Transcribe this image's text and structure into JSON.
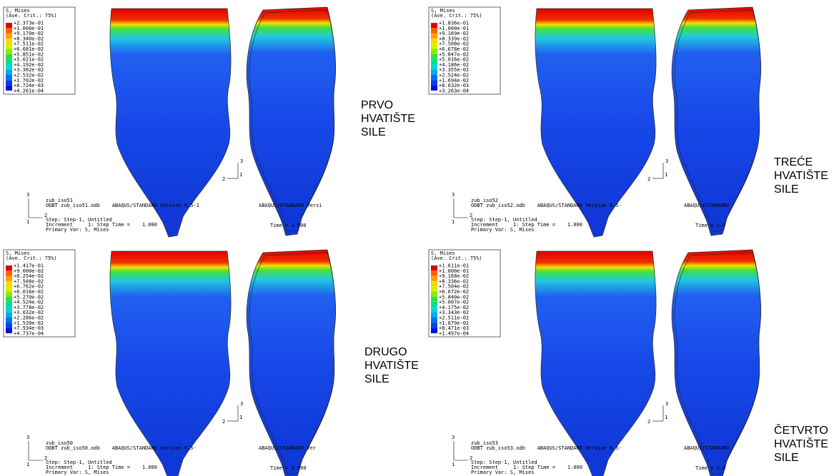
{
  "panels": [
    {
      "legend": {
        "title": "S, Mises",
        "criterion": "(Ave. Crit.: 75%)",
        "values": [
          "+2.373e-01",
          "+1.000e-01",
          "+9.170e-02",
          "+8.340e-02",
          "+7.511e-02",
          "+6.681e-02",
          "+5.851e-02",
          "+5.021e-02",
          "+4.192e-02",
          "+3.362e-02",
          "+2.532e-02",
          "+1.702e-02",
          "+8.724e-03",
          "+4.261e-04"
        ]
      },
      "footer": {
        "model": "zub_iso51",
        "odb": "ODBT zub_iso51.odb    ABAQUS/STANDARD Version 6.5-1",
        "step": "Step: Step-1, Untitled",
        "increment": "Increment     1: Step Time =    1.000",
        "variable": "Primary Var: S, Mises"
      },
      "overlay": [
        "ABAQUS/STANDARD Versi",
        "Time = 1.000"
      ],
      "triad": [
        "3",
        "2",
        "1"
      ],
      "label": [
        "PRVO",
        "HVATIŠTE",
        "SILE"
      ]
    },
    {
      "legend": {
        "title": "S, Mises",
        "criterion": "(Ave. Crit.: 75%)",
        "values": [
          "+1.836e-01",
          "+1.000e-01",
          "+9.169e-02",
          "+8.339e-02",
          "+7.508e-02",
          "+6.678e-02",
          "+5.847e-02",
          "+5.016e-02",
          "+4.186e-02",
          "+3.355e-02",
          "+2.524e-02",
          "+1.694e-02",
          "+8.632e-03",
          "+3.263e-04"
        ]
      },
      "footer": {
        "model": "zub_iso52",
        "odb": "ODBT zub_iso52.odb    ABAQUS/STANDARD Version 6.5-",
        "step": "Step: Step-1, Untitled",
        "increment": "Increment     1: Step Time =    1.000",
        "variable": "Primary Var: S, Mises"
      },
      "overlay": [
        "ABAQUS/STANDARD '",
        "Time = 1.0"
      ],
      "triad": [
        "3",
        "2",
        "1"
      ],
      "label": [
        "TREĆE",
        "HVATIŠTE",
        "SILE"
      ]
    },
    {
      "legend": {
        "title": "S, Mises",
        "criterion": "(Ave. Crit.: 75%)",
        "values": [
          "+1.417e-01",
          "+9.000e-02",
          "+8.254e-02",
          "+7.508e-02",
          "+6.762e-02",
          "+6.016e-02",
          "+5.270e-02",
          "+4.524e-02",
          "+3.778e-02",
          "+3.032e-02",
          "+2.286e-02",
          "+1.539e-02",
          "+7.934e-03",
          "+4.737e-04"
        ]
      },
      "footer": {
        "model": "zub_iso50",
        "odb": "ODBT zub_iso50.odb    ABAQUS/STANDARD Version 6.5-",
        "step": "Step: Step-1, Untitled",
        "increment": "Increment     1: Step Time =    1.000",
        "variable": "Primary Var: S, Mises"
      },
      "overlay": [
        "ABAQUS/STANDARD Ver",
        "Time = 1.000"
      ],
      "triad": [
        "3",
        "2",
        "1"
      ],
      "label": [
        "DRUGO",
        "HVATIŠTE",
        "SILE"
      ]
    },
    {
      "legend": {
        "title": "S, Mises",
        "criterion": "(Ave. Crit.: 75%)",
        "values": [
          "+1.611e-01",
          "+1.000e-01",
          "+9.168e-02",
          "+8.336e-02",
          "+7.504e-02",
          "+6.672e-02",
          "+5.840e-02",
          "+5.007e-02",
          "+4.175e-02",
          "+3.343e-02",
          "+2.511e-02",
          "+1.679e-02",
          "+8.471e-03",
          "+1.497e-04"
        ]
      },
      "footer": {
        "model": "zub_iso53",
        "odb": "ODBT zub_iso53.odb    ABAQUS/STANDARD Version 6.5-",
        "step": "Step: Step-1, Untitled",
        "increment": "Increment     1: Step Time =    1.000",
        "variable": "Primary Var: S, Mises"
      },
      "overlay": [
        "ABAQUS/STANDARD",
        "Time = 1.0"
      ],
      "triad": [
        "3",
        "2",
        "1"
      ],
      "label": [
        "ČETVRTO",
        "HVATIŠTE",
        "SILE"
      ]
    }
  ]
}
